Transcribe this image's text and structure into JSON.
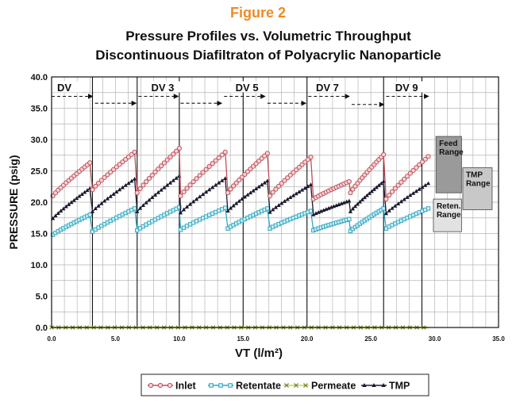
{
  "figure_label": "Figure 2",
  "colors": {
    "figure_label": "#f08a24",
    "inlet": "#c0505a",
    "retentate": "#2ea8c4",
    "permeate": "#6d7a2a",
    "tmp": "#1a1a2e",
    "feed_box": "#9a9a9a",
    "tmp_box": "#c8c8c8",
    "reten_box": "#e2e2e2"
  },
  "chart_data": {
    "type": "line",
    "title": "Pressure Profiles vs. Volumetric Throughput",
    "subtitle": "Discontinuous Diafiltraton of Polyacrylic Nanoparticle",
    "xlabel": "VT (l/m²)",
    "ylabel": "PRESSURE (psig)",
    "xlim": [
      0,
      35
    ],
    "ylim": [
      0,
      40
    ],
    "x_ticks": [
      "0.0",
      "5.0",
      "10.0",
      "15.0",
      "20.0",
      "25.0",
      "30.0",
      "35.0"
    ],
    "y_ticks": [
      "0.0",
      "5.0",
      "10.0",
      "15.0",
      "20.0",
      "25.0",
      "30.0",
      "35.0",
      "40.0"
    ],
    "grid": true,
    "legend_position": "bottom",
    "legend": [
      "Inlet",
      "Retentate",
      "Permeate",
      "TMP"
    ],
    "dv_boundaries": [
      3.2,
      6.7,
      10.0,
      15.0,
      20.0,
      26.0,
      29.0
    ],
    "stage_labels": [
      {
        "text": "DV",
        "x": 1.0
      },
      {
        "text": "DV 3",
        "x": 8.7
      },
      {
        "text": "DV 5",
        "x": 15.3
      },
      {
        "text": "DV 7",
        "x": 21.6
      },
      {
        "text": "DV 9",
        "x": 27.8
      }
    ],
    "stage_arrows": [
      {
        "x_start": 0.0,
        "x_end": 3.2,
        "y": 36.9
      },
      {
        "x_start": 3.4,
        "x_end": 6.6,
        "y": 35.8
      },
      {
        "x_start": 6.8,
        "x_end": 9.9,
        "y": 36.9
      },
      {
        "x_start": 10.1,
        "x_end": 13.3,
        "y": 35.8
      },
      {
        "x_start": 13.5,
        "x_end": 16.7,
        "y": 36.9
      },
      {
        "x_start": 16.9,
        "x_end": 19.9,
        "y": 35.8
      },
      {
        "x_start": 20.1,
        "x_end": 23.3,
        "y": 36.9
      },
      {
        "x_start": 23.5,
        "x_end": 26.0,
        "y": 35.6
      },
      {
        "x_start": 26.2,
        "x_end": 29.5,
        "y": 36.9
      }
    ],
    "segments": [
      {
        "x0": 0.1,
        "x1": 3.0,
        "inlet": [
          21.0,
          26.3
        ],
        "retentate": [
          14.8,
          18.0
        ],
        "tmp": [
          17.4,
          22.2
        ]
      },
      {
        "x0": 3.2,
        "x1": 6.5,
        "inlet": [
          22.0,
          28.0
        ],
        "retentate": [
          15.3,
          19.0
        ],
        "tmp": [
          18.5,
          23.7
        ]
      },
      {
        "x0": 6.7,
        "x1": 10.0,
        "inlet": [
          21.5,
          28.6
        ],
        "retentate": [
          15.5,
          19.2
        ],
        "tmp": [
          18.5,
          24.2
        ]
      },
      {
        "x0": 10.1,
        "x1": 13.6,
        "inlet": [
          21.0,
          28.0
        ],
        "retentate": [
          15.6,
          19.1
        ],
        "tmp": [
          18.3,
          23.8
        ]
      },
      {
        "x0": 13.8,
        "x1": 16.9,
        "inlet": [
          21.5,
          27.8
        ],
        "retentate": [
          15.8,
          19.0
        ],
        "tmp": [
          18.6,
          23.4
        ]
      },
      {
        "x0": 17.1,
        "x1": 20.3,
        "inlet": [
          21.0,
          27.2
        ],
        "retentate": [
          15.8,
          18.6
        ],
        "tmp": [
          18.4,
          22.8
        ]
      },
      {
        "x0": 20.5,
        "x1": 23.3,
        "inlet": [
          20.5,
          23.3
        ],
        "retentate": [
          15.5,
          17.3
        ],
        "tmp": [
          18.0,
          20.2
        ]
      },
      {
        "x0": 23.4,
        "x1": 26.0,
        "inlet": [
          21.5,
          27.6
        ],
        "retentate": [
          15.4,
          19.0
        ],
        "tmp": [
          18.5,
          23.3
        ]
      },
      {
        "x0": 26.2,
        "x1": 29.5,
        "inlet": [
          20.5,
          27.3
        ],
        "retentate": [
          15.8,
          19.0
        ],
        "tmp": [
          18.2,
          23.0
        ]
      }
    ],
    "permeate": {
      "x0": 0.0,
      "x1": 29.5,
      "value": 0.0
    },
    "range_boxes": [
      {
        "label": [
          "Feed",
          "Range"
        ],
        "x0": 30.1,
        "x1": 32.1,
        "y0": 21.5,
        "y1": 30.5,
        "color_key": "feed_box"
      },
      {
        "label": [
          "TMP",
          "Range"
        ],
        "x0": 32.2,
        "x1": 34.5,
        "y0": 18.8,
        "y1": 25.5,
        "color_key": "tmp_box"
      },
      {
        "label": [
          "Reten.",
          "Range"
        ],
        "x0": 29.9,
        "x1": 32.1,
        "y0": 15.3,
        "y1": 20.5,
        "color_key": "reten_box"
      }
    ]
  }
}
